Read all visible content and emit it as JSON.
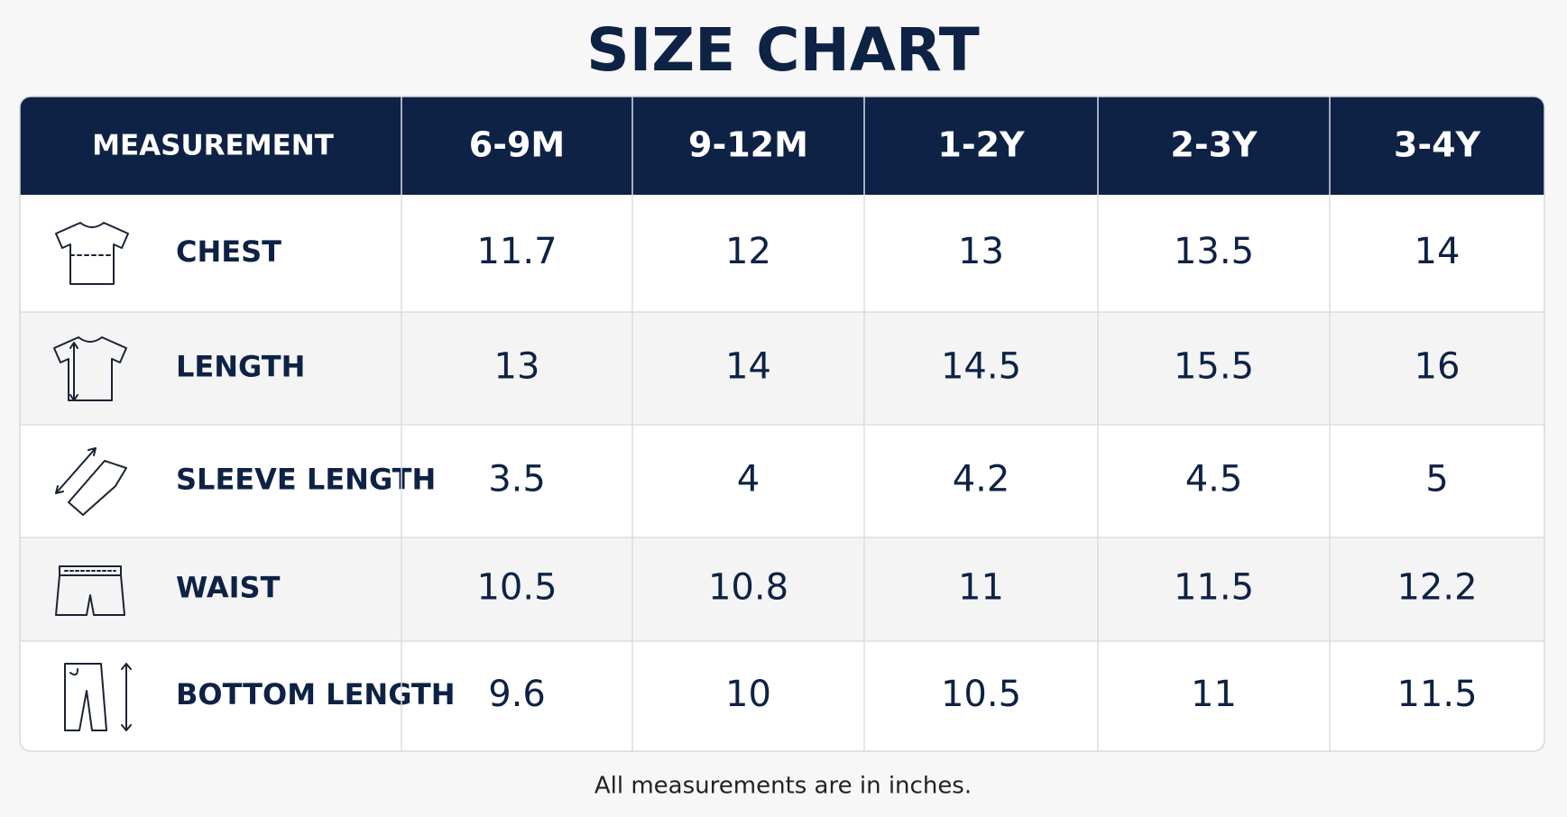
{
  "title": "SIZE CHART",
  "table": {
    "header": [
      "MEASUREMENT",
      "6-9M",
      "9-12M",
      "1-2Y",
      "2-3Y",
      "3-4Y"
    ],
    "rows": [
      {
        "label": "CHEST",
        "values": [
          11.7,
          12,
          13,
          13.5,
          14
        ]
      },
      {
        "label": "LENGTH",
        "values": [
          13,
          14,
          14.5,
          15.5,
          16
        ]
      },
      {
        "label": "SLEEVE LENGTH",
        "values": [
          3.5,
          4,
          4.2,
          4.5,
          5
        ]
      },
      {
        "label": "WAIST",
        "values": [
          10.5,
          10.8,
          11,
          11.5,
          12.2
        ]
      },
      {
        "label": "BOTTOM LENGTH",
        "values": [
          9.6,
          10,
          10.5,
          11,
          11.5
        ]
      }
    ]
  },
  "footnote": "All measurements are in inches."
}
